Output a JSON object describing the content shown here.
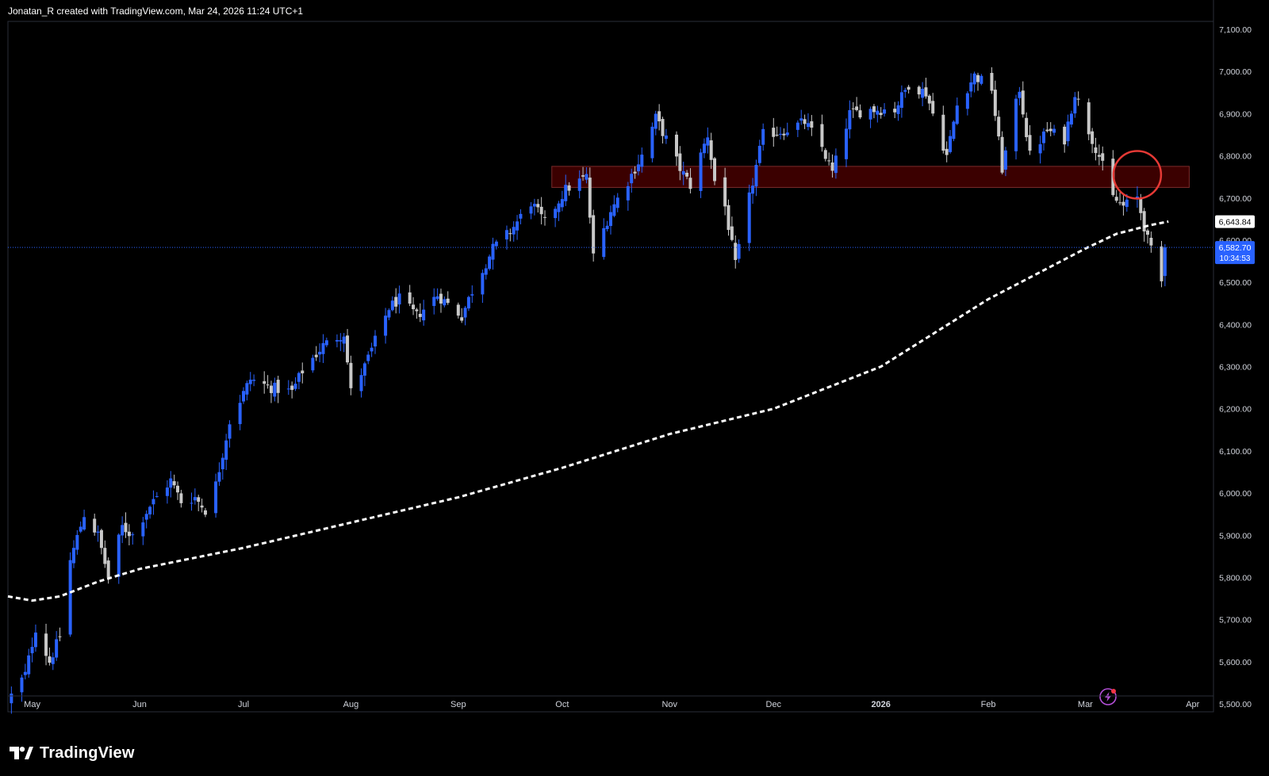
{
  "header": {
    "attribution": "Jonatan_R created with TradingView.com, Mar 24, 2026 11:24 UTC+1"
  },
  "footer": {
    "brand": "TradingView"
  },
  "colors": {
    "background": "#000000",
    "bull": "#2962ff",
    "bear": "#c8c8c8",
    "ma": "#ffffff",
    "zone_fill": "#3b0000",
    "zone_border": "#7a2a2a",
    "circle": "#e53935",
    "price_line": "#2962ff",
    "lightning": "#b44fd8"
  },
  "chart_data": {
    "type": "candlestick",
    "y_ticks": [
      "7,100.00",
      "7,000.00",
      "6,900.00",
      "6,800.00",
      "6,700.00",
      "6,600.00",
      "6,500.00",
      "6,400.00",
      "6,300.00",
      "6,200.00",
      "6,100.00",
      "6,000.00",
      "5,900.00",
      "5,800.00",
      "5,700.00",
      "5,600.00",
      "5,500.00"
    ],
    "ylim": [
      5500,
      7100
    ],
    "x_ticks": [
      {
        "label": "May",
        "date": "2025-05-01"
      },
      {
        "label": "Jun",
        "date": "2025-06-01"
      },
      {
        "label": "Jul",
        "date": "2025-07-01"
      },
      {
        "label": "Aug",
        "date": "2025-08-01"
      },
      {
        "label": "Sep",
        "date": "2025-09-01"
      },
      {
        "label": "Oct",
        "date": "2025-10-01"
      },
      {
        "label": "Nov",
        "date": "2025-11-01"
      },
      {
        "label": "Dec",
        "date": "2025-12-01"
      },
      {
        "label": "2026",
        "date": "2026-01-01"
      },
      {
        "label": "Feb",
        "date": "2026-02-01"
      },
      {
        "label": "Mar",
        "date": "2026-03-01"
      },
      {
        "label": "Apr",
        "date": "2026-04-01"
      }
    ],
    "x_start": "2025-04-24",
    "x_end": "2026-04-07",
    "close_path": [
      [
        "2025-04-25",
        5520
      ],
      [
        "2025-04-29",
        5570
      ],
      [
        "2025-05-02",
        5680
      ],
      [
        "2025-05-06",
        5600
      ],
      [
        "2025-05-09",
        5660
      ],
      [
        "2025-05-12",
        5840
      ],
      [
        "2025-05-16",
        5950
      ],
      [
        "2025-05-20",
        5900
      ],
      [
        "2025-05-23",
        5800
      ],
      [
        "2025-05-27",
        5920
      ],
      [
        "2025-05-30",
        5900
      ],
      [
        "2025-06-04",
        5970
      ],
      [
        "2025-06-10",
        6030
      ],
      [
        "2025-06-13",
        5980
      ],
      [
        "2025-06-17",
        5990
      ],
      [
        "2025-06-20",
        5960
      ],
      [
        "2025-06-23",
        6020
      ],
      [
        "2025-06-27",
        6170
      ],
      [
        "2025-07-03",
        6270
      ],
      [
        "2025-07-09",
        6250
      ],
      [
        "2025-07-15",
        6240
      ],
      [
        "2025-07-18",
        6290
      ],
      [
        "2025-07-24",
        6350
      ],
      [
        "2025-07-30",
        6380
      ],
      [
        "2025-08-01",
        6240
      ],
      [
        "2025-08-05",
        6300
      ],
      [
        "2025-08-12",
        6440
      ],
      [
        "2025-08-15",
        6460
      ],
      [
        "2025-08-20",
        6420
      ],
      [
        "2025-08-26",
        6470
      ],
      [
        "2025-09-02",
        6420
      ],
      [
        "2025-09-05",
        6480
      ],
      [
        "2025-09-11",
        6580
      ],
      [
        "2025-09-16",
        6620
      ],
      [
        "2025-09-22",
        6690
      ],
      [
        "2025-09-26",
        6640
      ],
      [
        "2025-10-02",
        6720
      ],
      [
        "2025-10-08",
        6750
      ],
      [
        "2025-10-10",
        6560
      ],
      [
        "2025-10-15",
        6670
      ],
      [
        "2025-10-20",
        6740
      ],
      [
        "2025-10-24",
        6800
      ],
      [
        "2025-10-28",
        6890
      ],
      [
        "2025-10-31",
        6840
      ],
      [
        "2025-11-04",
        6770
      ],
      [
        "2025-11-07",
        6730
      ],
      [
        "2025-11-12",
        6850
      ],
      [
        "2025-11-14",
        6740
      ],
      [
        "2025-11-17",
        6680
      ],
      [
        "2025-11-20",
        6540
      ],
      [
        "2025-11-24",
        6700
      ],
      [
        "2025-11-28",
        6850
      ],
      [
        "2025-12-04",
        6860
      ],
      [
        "2025-12-10",
        6880
      ],
      [
        "2025-12-15",
        6820
      ],
      [
        "2025-12-18",
        6760
      ],
      [
        "2025-12-23",
        6900
      ],
      [
        "2025-12-29",
        6910
      ],
      [
        "2026-01-05",
        6910
      ],
      [
        "2026-01-09",
        6970
      ],
      [
        "2026-01-14",
        6950
      ],
      [
        "2026-01-20",
        6800
      ],
      [
        "2026-01-23",
        6920
      ],
      [
        "2026-01-28",
        6990
      ],
      [
        "2026-02-02",
        6960
      ],
      [
        "2026-02-05",
        6770
      ],
      [
        "2026-02-10",
        6960
      ],
      [
        "2026-02-13",
        6800
      ],
      [
        "2026-02-18",
        6860
      ],
      [
        "2026-02-23",
        6840
      ],
      [
        "2026-02-26",
        6950
      ],
      [
        "2026-03-02",
        6860
      ],
      [
        "2026-03-05",
        6800
      ],
      [
        "2026-03-09",
        6700
      ],
      [
        "2026-03-12",
        6680
      ],
      [
        "2026-03-16",
        6700
      ],
      [
        "2026-03-19",
        6600
      ],
      [
        "2026-03-23",
        6500
      ],
      [
        "2026-03-24",
        6582.7
      ]
    ],
    "ma_path": [
      [
        "2025-04-24",
        5755
      ],
      [
        "2025-05-01",
        5745
      ],
      [
        "2025-05-09",
        5755
      ],
      [
        "2025-05-20",
        5790
      ],
      [
        "2025-06-01",
        5820
      ],
      [
        "2025-07-01",
        5870
      ],
      [
        "2025-08-01",
        5930
      ],
      [
        "2025-09-01",
        5990
      ],
      [
        "2025-10-01",
        6060
      ],
      [
        "2025-11-01",
        6140
      ],
      [
        "2025-12-01",
        6200
      ],
      [
        "2026-01-01",
        6300
      ],
      [
        "2026-02-01",
        6460
      ],
      [
        "2026-03-01",
        6580
      ],
      [
        "2026-03-10",
        6615
      ],
      [
        "2026-03-20",
        6636
      ],
      [
        "2026-03-25",
        6644
      ]
    ],
    "resistance_zone": {
      "start": "2025-09-28",
      "end": "2026-03-31",
      "low": 6725,
      "high": 6775
    },
    "highlight_circle": {
      "date": "2026-03-16",
      "value": 6755
    },
    "last_price": {
      "value": 6582.7,
      "label": "6,582.70",
      "countdown": "10:34:53"
    },
    "ma_label": {
      "value": 6643.84,
      "label": "6,643.84"
    },
    "last_date": "2026-03-24"
  }
}
